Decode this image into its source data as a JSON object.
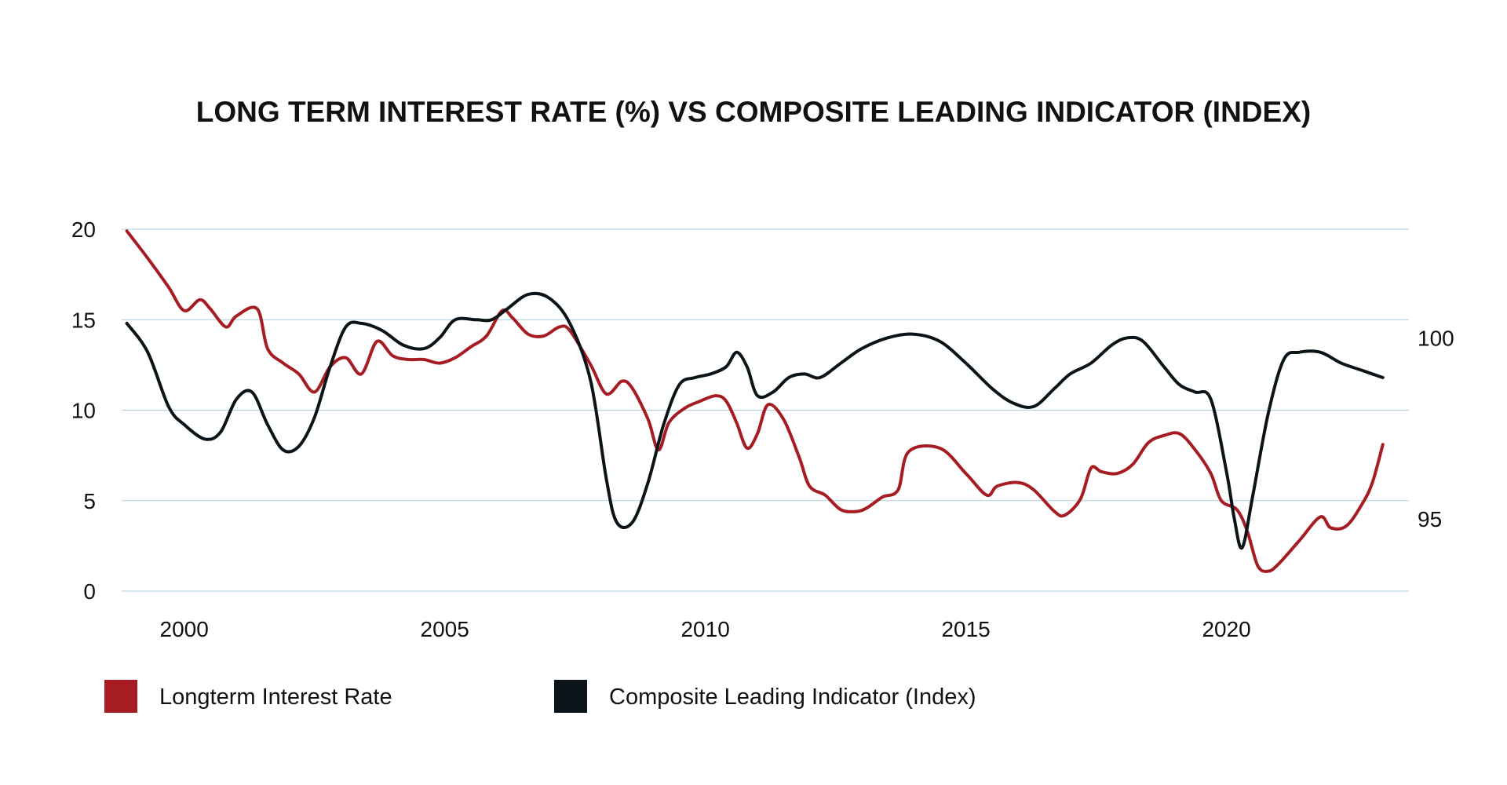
{
  "chart_data": {
    "type": "line",
    "title": "LONG TERM INTEREST RATE (%) VS COMPOSITE LEADING INDICATOR (INDEX)",
    "xlabel": "",
    "ylabel": "",
    "y2label": "",
    "xlim": [
      1998.8,
      2023.5
    ],
    "ylim": [
      0,
      20
    ],
    "y2lim": [
      93,
      103
    ],
    "x_ticks": [
      {
        "value": 2000,
        "label": "2000"
      },
      {
        "value": 2005,
        "label": "2005"
      },
      {
        "value": 2010,
        "label": "2010"
      },
      {
        "value": 2015,
        "label": "2015"
      },
      {
        "value": 2020,
        "label": "2020"
      }
    ],
    "y_ticks": [
      {
        "value": 0,
        "label": "0"
      },
      {
        "value": 5,
        "label": "5"
      },
      {
        "value": 10,
        "label": "10"
      },
      {
        "value": 15,
        "label": "15"
      },
      {
        "value": 20,
        "label": "20"
      }
    ],
    "y2_ticks": [
      {
        "value": 95,
        "label": "95"
      },
      {
        "value": 100,
        "label": "100"
      }
    ],
    "grid": true,
    "legend_position": "bottom-left",
    "series": [
      {
        "name": "Longterm Interest Rate",
        "axis": "left",
        "color": "#a61c22",
        "points": [
          [
            1998.9,
            19.9
          ],
          [
            1999.3,
            18.4
          ],
          [
            1999.7,
            16.8
          ],
          [
            2000.0,
            15.5
          ],
          [
            2000.3,
            16.1
          ],
          [
            2000.5,
            15.6
          ],
          [
            2000.8,
            14.6
          ],
          [
            2001.0,
            15.2
          ],
          [
            2001.4,
            15.6
          ],
          [
            2001.6,
            13.4
          ],
          [
            2001.9,
            12.6
          ],
          [
            2002.2,
            12.0
          ],
          [
            2002.5,
            11.0
          ],
          [
            2002.8,
            12.4
          ],
          [
            2003.1,
            12.9
          ],
          [
            2003.4,
            12.0
          ],
          [
            2003.7,
            13.8
          ],
          [
            2004.0,
            13.0
          ],
          [
            2004.3,
            12.8
          ],
          [
            2004.6,
            12.8
          ],
          [
            2004.9,
            12.6
          ],
          [
            2005.2,
            12.9
          ],
          [
            2005.5,
            13.5
          ],
          [
            2005.8,
            14.1
          ],
          [
            2006.1,
            15.5
          ],
          [
            2006.3,
            15.1
          ],
          [
            2006.6,
            14.2
          ],
          [
            2006.9,
            14.1
          ],
          [
            2007.2,
            14.6
          ],
          [
            2007.4,
            14.4
          ],
          [
            2007.8,
            12.5
          ],
          [
            2008.1,
            10.9
          ],
          [
            2008.4,
            11.6
          ],
          [
            2008.6,
            11.2
          ],
          [
            2008.9,
            9.5
          ],
          [
            2009.1,
            7.8
          ],
          [
            2009.3,
            9.3
          ],
          [
            2009.6,
            10.1
          ],
          [
            2009.9,
            10.5
          ],
          [
            2010.2,
            10.8
          ],
          [
            2010.4,
            10.5
          ],
          [
            2010.6,
            9.3
          ],
          [
            2010.8,
            7.9
          ],
          [
            2011.0,
            8.7
          ],
          [
            2011.2,
            10.3
          ],
          [
            2011.5,
            9.5
          ],
          [
            2011.8,
            7.4
          ],
          [
            2012.0,
            5.8
          ],
          [
            2012.3,
            5.3
          ],
          [
            2012.6,
            4.5
          ],
          [
            2012.9,
            4.4
          ],
          [
            2013.1,
            4.6
          ],
          [
            2013.4,
            5.2
          ],
          [
            2013.7,
            5.6
          ],
          [
            2013.9,
            7.7
          ],
          [
            2014.5,
            7.9
          ],
          [
            2015.0,
            6.5
          ],
          [
            2015.4,
            5.3
          ],
          [
            2015.6,
            5.8
          ],
          [
            2016.0,
            6.0
          ],
          [
            2016.3,
            5.6
          ],
          [
            2016.7,
            4.4
          ],
          [
            2016.9,
            4.2
          ],
          [
            2017.2,
            5.1
          ],
          [
            2017.4,
            6.8
          ],
          [
            2017.6,
            6.6
          ],
          [
            2017.9,
            6.5
          ],
          [
            2018.2,
            7.0
          ],
          [
            2018.5,
            8.2
          ],
          [
            2018.8,
            8.6
          ],
          [
            2019.1,
            8.7
          ],
          [
            2019.4,
            7.8
          ],
          [
            2019.7,
            6.5
          ],
          [
            2019.9,
            5.0
          ],
          [
            2020.2,
            4.5
          ],
          [
            2020.4,
            3.3
          ],
          [
            2020.6,
            1.4
          ],
          [
            2020.8,
            1.1
          ],
          [
            2021.0,
            1.5
          ],
          [
            2021.4,
            2.8
          ],
          [
            2021.8,
            4.1
          ],
          [
            2022.0,
            3.5
          ],
          [
            2022.3,
            3.6
          ],
          [
            2022.6,
            4.8
          ],
          [
            2022.8,
            6.0
          ],
          [
            2023.0,
            8.1
          ]
        ]
      },
      {
        "name": "Composite Leading Indicator (Index)",
        "axis": "right",
        "color": "#0b1418",
        "points": [
          [
            1998.9,
            100.4
          ],
          [
            1999.3,
            99.6
          ],
          [
            1999.7,
            98.1
          ],
          [
            2000.0,
            97.6
          ],
          [
            2000.4,
            97.2
          ],
          [
            2000.7,
            97.4
          ],
          [
            2001.0,
            98.3
          ],
          [
            2001.3,
            98.5
          ],
          [
            2001.6,
            97.6
          ],
          [
            2001.9,
            96.9
          ],
          [
            2002.2,
            97.0
          ],
          [
            2002.5,
            97.8
          ],
          [
            2002.8,
            99.2
          ],
          [
            2003.1,
            100.3
          ],
          [
            2003.4,
            100.4
          ],
          [
            2003.8,
            100.2
          ],
          [
            2004.2,
            99.8
          ],
          [
            2004.6,
            99.7
          ],
          [
            2004.9,
            100.0
          ],
          [
            2005.2,
            100.5
          ],
          [
            2005.6,
            100.5
          ],
          [
            2005.9,
            100.5
          ],
          [
            2006.2,
            100.8
          ],
          [
            2006.6,
            101.2
          ],
          [
            2007.0,
            101.1
          ],
          [
            2007.4,
            100.4
          ],
          [
            2007.8,
            98.8
          ],
          [
            2008.1,
            96.1
          ],
          [
            2008.3,
            94.9
          ],
          [
            2008.6,
            94.9
          ],
          [
            2008.9,
            96.0
          ],
          [
            2009.2,
            97.6
          ],
          [
            2009.5,
            98.7
          ],
          [
            2009.8,
            98.9
          ],
          [
            2010.1,
            99.0
          ],
          [
            2010.4,
            99.2
          ],
          [
            2010.6,
            99.6
          ],
          [
            2010.8,
            99.2
          ],
          [
            2011.0,
            98.4
          ],
          [
            2011.3,
            98.5
          ],
          [
            2011.6,
            98.9
          ],
          [
            2011.9,
            99.0
          ],
          [
            2012.2,
            98.9
          ],
          [
            2012.6,
            99.3
          ],
          [
            2013.0,
            99.7
          ],
          [
            2013.5,
            100.0
          ],
          [
            2014.0,
            100.1
          ],
          [
            2014.5,
            99.9
          ],
          [
            2015.0,
            99.3
          ],
          [
            2015.5,
            98.6
          ],
          [
            2015.9,
            98.2
          ],
          [
            2016.3,
            98.1
          ],
          [
            2016.7,
            98.6
          ],
          [
            2017.0,
            99.0
          ],
          [
            2017.4,
            99.3
          ],
          [
            2017.8,
            99.8
          ],
          [
            2018.1,
            100.0
          ],
          [
            2018.4,
            99.9
          ],
          [
            2018.8,
            99.2
          ],
          [
            2019.1,
            98.7
          ],
          [
            2019.4,
            98.5
          ],
          [
            2019.7,
            98.3
          ],
          [
            2020.0,
            96.3
          ],
          [
            2020.15,
            95.0
          ],
          [
            2020.3,
            94.2
          ],
          [
            2020.5,
            95.6
          ],
          [
            2020.8,
            97.9
          ],
          [
            2021.1,
            99.4
          ],
          [
            2021.4,
            99.6
          ],
          [
            2021.8,
            99.6
          ],
          [
            2022.2,
            99.3
          ],
          [
            2022.6,
            99.1
          ],
          [
            2023.0,
            98.9
          ]
        ]
      }
    ]
  }
}
